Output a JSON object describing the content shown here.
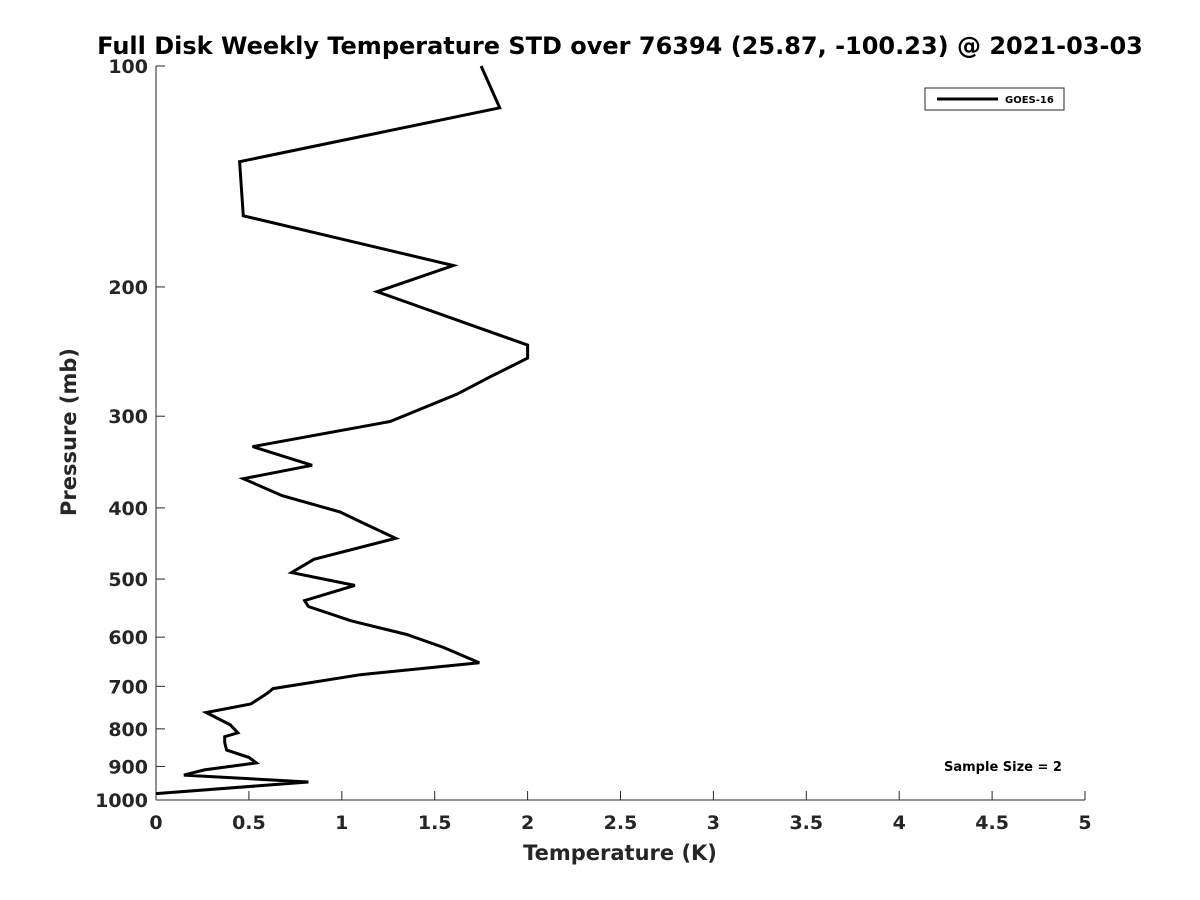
{
  "chart_data": {
    "type": "line",
    "title": "Full Disk Weekly Temperature STD over 76394 (25.87, -100.23) @ 2021-03-03",
    "xlabel": "Temperature (K)",
    "ylabel": "Pressure (mb)",
    "xlim": [
      0,
      5
    ],
    "ylim": [
      100,
      1000
    ],
    "y_scale": "log",
    "y_direction": "reversed",
    "grid": false,
    "legend_position": "top-right",
    "x_ticks": [
      0,
      0.5,
      1,
      1.5,
      2,
      2.5,
      3,
      3.5,
      4,
      4.5,
      5
    ],
    "x_tick_labels": [
      "0",
      "0.5",
      "1",
      "1.5",
      "2",
      "2.5",
      "3",
      "3.5",
      "4",
      "4.5",
      "5"
    ],
    "y_ticks": [
      100,
      200,
      300,
      400,
      500,
      600,
      700,
      800,
      900,
      1000
    ],
    "y_tick_labels": [
      "100",
      "200",
      "300",
      "400",
      "500",
      "600",
      "700",
      "800",
      "900",
      "1000"
    ],
    "series": [
      {
        "name": "GOES-16",
        "color": "#000000",
        "x": [
          1.75,
          1.85,
          0.45,
          0.47,
          1.6,
          1.19,
          2.0,
          2.0,
          1.8,
          1.62,
          1.26,
          0.52,
          0.84,
          0.47,
          0.68,
          0.99,
          1.12,
          1.29,
          0.85,
          0.73,
          1.07,
          0.8,
          0.82,
          1.05,
          1.35,
          1.55,
          1.74,
          1.1,
          0.63,
          0.6,
          0.51,
          0.27,
          0.4,
          0.44,
          0.37,
          0.37,
          0.38,
          0.5,
          0.54,
          0.26,
          0.15,
          0.82,
          0.0
        ],
        "y": [
          100,
          114,
          135,
          160,
          187,
          203,
          240,
          250,
          265,
          280,
          305,
          330,
          350,
          365,
          385,
          405,
          420,
          440,
          470,
          490,
          510,
          535,
          545,
          570,
          595,
          620,
          650,
          675,
          705,
          715,
          740,
          760,
          790,
          810,
          820,
          835,
          855,
          875,
          890,
          910,
          925,
          945,
          980
        ]
      }
    ],
    "annotations": [
      "Sample Size = 2"
    ]
  }
}
